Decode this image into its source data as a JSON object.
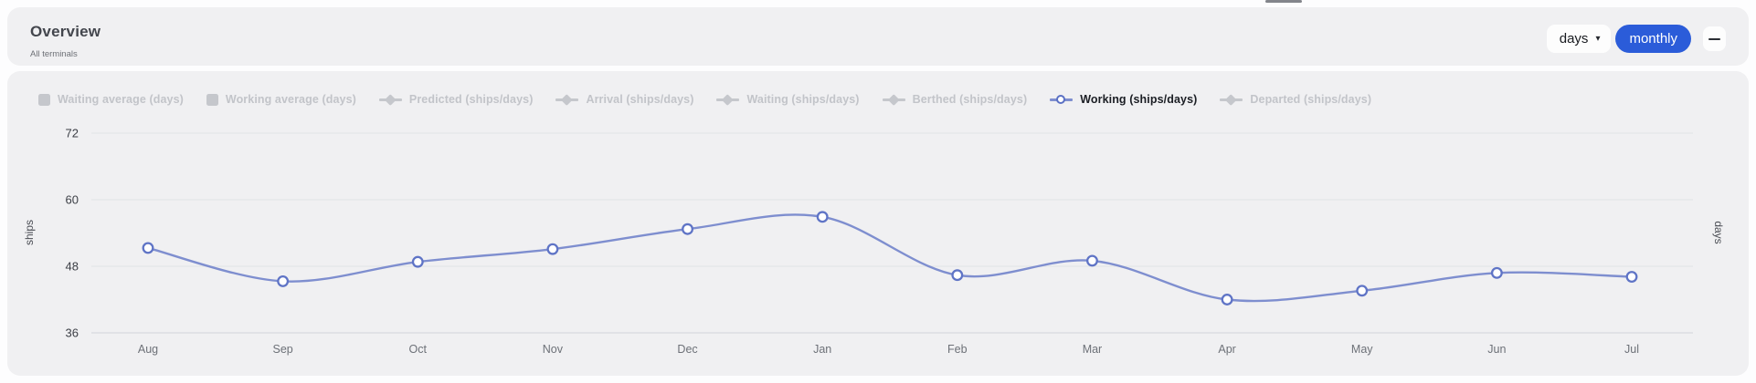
{
  "header": {
    "title": "Overview",
    "subtitle": "All terminals",
    "days_dropdown_value": "days",
    "monthly_button_label": "monthly"
  },
  "icons": {
    "dropdown_caret": "▾",
    "collapse": "minus-dash"
  },
  "legend": {
    "items": [
      {
        "label": "Waiting average (days)",
        "marker": "square",
        "active": false
      },
      {
        "label": "Working average (days)",
        "marker": "square",
        "active": false
      },
      {
        "label": "Predicted (ships/days)",
        "marker": "diamond",
        "active": false
      },
      {
        "label": "Arrival (ships/days)",
        "marker": "diamond",
        "active": false
      },
      {
        "label": "Waiting (ships/days)",
        "marker": "diamond",
        "active": false
      },
      {
        "label": "Berthed (ships/days)",
        "marker": "diamond",
        "active": false
      },
      {
        "label": "Working (ships/days)",
        "marker": "circle",
        "active": true
      },
      {
        "label": "Departed (ships/days)",
        "marker": "diamond",
        "active": false
      }
    ]
  },
  "chart_data": {
    "type": "line",
    "title": "",
    "categories": [
      "Aug",
      "Sep",
      "Oct",
      "Nov",
      "Dec",
      "Jan",
      "Feb",
      "Mar",
      "Apr",
      "May",
      "Jun",
      "Jul"
    ],
    "series": [
      {
        "name": "Working (ships/days)",
        "values": [
          51.3,
          45.3,
          48.8,
          51.1,
          54.7,
          56.9,
          46.4,
          49.0,
          42.0,
          43.6,
          46.8,
          46.1
        ]
      }
    ],
    "ylabel_left": "ships",
    "ylabel_right": "days",
    "yticks": [
      36,
      48,
      60,
      72
    ],
    "ylim": [
      36,
      72
    ],
    "grid": true,
    "smooth": true,
    "legend_position": "top"
  },
  "colors": {
    "accent_blue": "#2b5cd9",
    "line": "#7e8ecf",
    "marker_stroke": "#5f74c6",
    "marker_fill": "#ffffff",
    "grid_line": "#e4e5e9",
    "axis_line": "#d8dade",
    "disabled_legend": "#c2c4c9",
    "active_legend_text": "#1b1e24",
    "tick_label": "#3b3e45",
    "month_label": "#6d7178",
    "card_bg": "#f0f0f2"
  }
}
